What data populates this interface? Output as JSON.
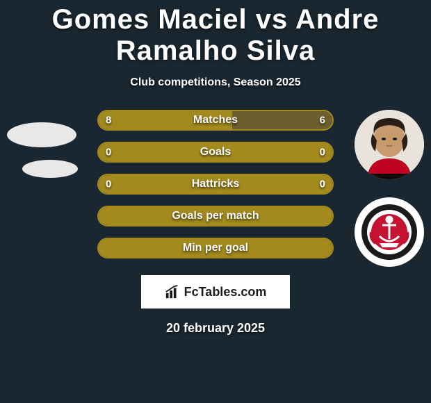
{
  "title": "Gomes Maciel vs Andre Ramalho Silva",
  "subtitle": "Club competitions, Season 2025",
  "date": "20 february 2025",
  "logo_text": "FcTables.com",
  "accent_color": "#a38a1f",
  "bar_border_color": "#a38a1f",
  "bar_fill_color": "#a38a1f",
  "background_color": "#1a2730",
  "bars": [
    {
      "label": "Matches",
      "left": "8",
      "right": "6",
      "left_pct": 57,
      "right_pct": 43,
      "show_values": true
    },
    {
      "label": "Goals",
      "left": "0",
      "right": "0",
      "left_pct": 100,
      "right_pct": 0,
      "show_values": true
    },
    {
      "label": "Hattricks",
      "left": "0",
      "right": "0",
      "left_pct": 100,
      "right_pct": 0,
      "show_values": true
    },
    {
      "label": "Goals per match",
      "left": "",
      "right": "",
      "left_pct": 100,
      "right_pct": 0,
      "show_values": false
    },
    {
      "label": "Min per goal",
      "left": "",
      "right": "",
      "left_pct": 100,
      "right_pct": 0,
      "show_values": false
    }
  ]
}
